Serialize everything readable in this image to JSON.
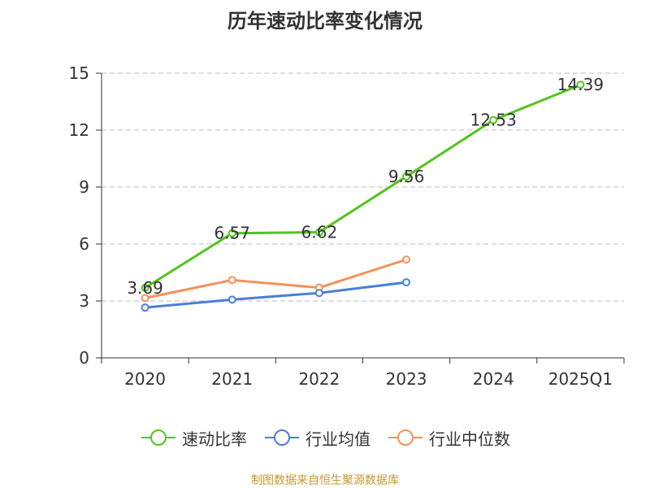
{
  "title": "历年速动比率变化情况",
  "source": "制图数据来自恒生聚源数据库",
  "colors": {
    "source": "#c8962f",
    "axis": "#333333",
    "grid": "#bbbbbb"
  },
  "chart_data": {
    "type": "line",
    "title": "历年速动比率变化情况",
    "categories": [
      "2020",
      "2021",
      "2022",
      "2023",
      "2024",
      "2025Q1"
    ],
    "ylim": [
      0,
      15
    ],
    "yticks": [
      0,
      3,
      6,
      9,
      12,
      15
    ],
    "grid": true,
    "legend_position": "bottom",
    "series": [
      {
        "name": "速动比率",
        "color": "#52c41a",
        "values": [
          3.69,
          6.57,
          6.62,
          9.56,
          12.53,
          14.39
        ],
        "labels": [
          "3.69",
          "6.57",
          "6.62",
          "9.56",
          "12.53",
          "14.39"
        ]
      },
      {
        "name": "行业均值",
        "color": "#4a7fd9",
        "values": [
          2.65,
          3.07,
          3.42,
          3.98,
          null,
          null
        ]
      },
      {
        "name": "行业中位数",
        "color": "#f5905a",
        "values": [
          3.15,
          4.1,
          3.7,
          5.18,
          null,
          null
        ]
      }
    ]
  }
}
